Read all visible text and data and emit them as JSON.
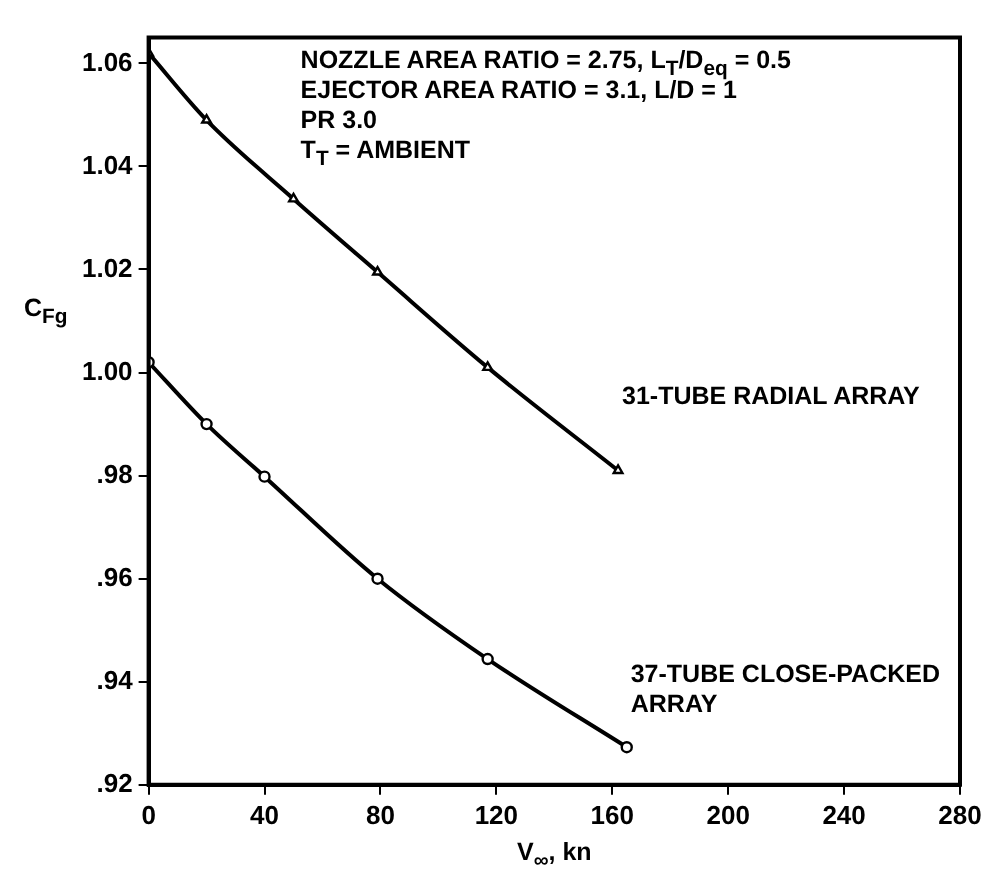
{
  "chart_data": {
    "type": "line",
    "xlabel": "V$_{∞}$, kn",
    "ylabel": "C$_{Fg}$",
    "series": [
      {
        "name": "31-TUBE RADIAL ARRAY",
        "color": "#000000",
        "marker": "triangle",
        "x": [
          0,
          20,
          50,
          79,
          117,
          162
        ],
        "values": [
          1.062,
          1.049,
          1.0337,
          1.0195,
          1.001,
          0.981
        ]
      },
      {
        "name": "37-TUBE CLOSE-PACKED ARRAY",
        "color": "#000000",
        "marker": "circle",
        "x": [
          0,
          20,
          40,
          79,
          117,
          165
        ],
        "values": [
          1.002,
          0.99,
          0.9798,
          0.96,
          0.9444,
          0.9273
        ]
      }
    ],
    "xlim": [
      0,
      280
    ],
    "xticks": [
      0,
      40,
      80,
      120,
      160,
      200,
      240,
      280
    ],
    "ylim": [
      0.92,
      1.065
    ],
    "yticks": [
      {
        "value": 0.92,
        "label": ".92"
      },
      {
        "value": 0.94,
        "label": ".94"
      },
      {
        "value": 0.96,
        "label": ".96"
      },
      {
        "value": 0.98,
        "label": ".98"
      },
      {
        "value": 1.0,
        "label": "1.00"
      },
      {
        "value": 1.02,
        "label": "1.02"
      },
      {
        "value": 1.04,
        "label": "1.04"
      },
      {
        "value": 1.06,
        "label": "1.06"
      }
    ],
    "grid": false,
    "legend": false,
    "line_style": "solid",
    "annotations": [
      "NOZZLE AREA RATIO = 2.75, L$_{T}$/D$_{eq}$ = 0.5",
      "EJECTOR AREA RATIO = 3.1, L/D = 1",
      "PR 3.0",
      "T$_{T}$ = AMBIENT"
    ]
  }
}
